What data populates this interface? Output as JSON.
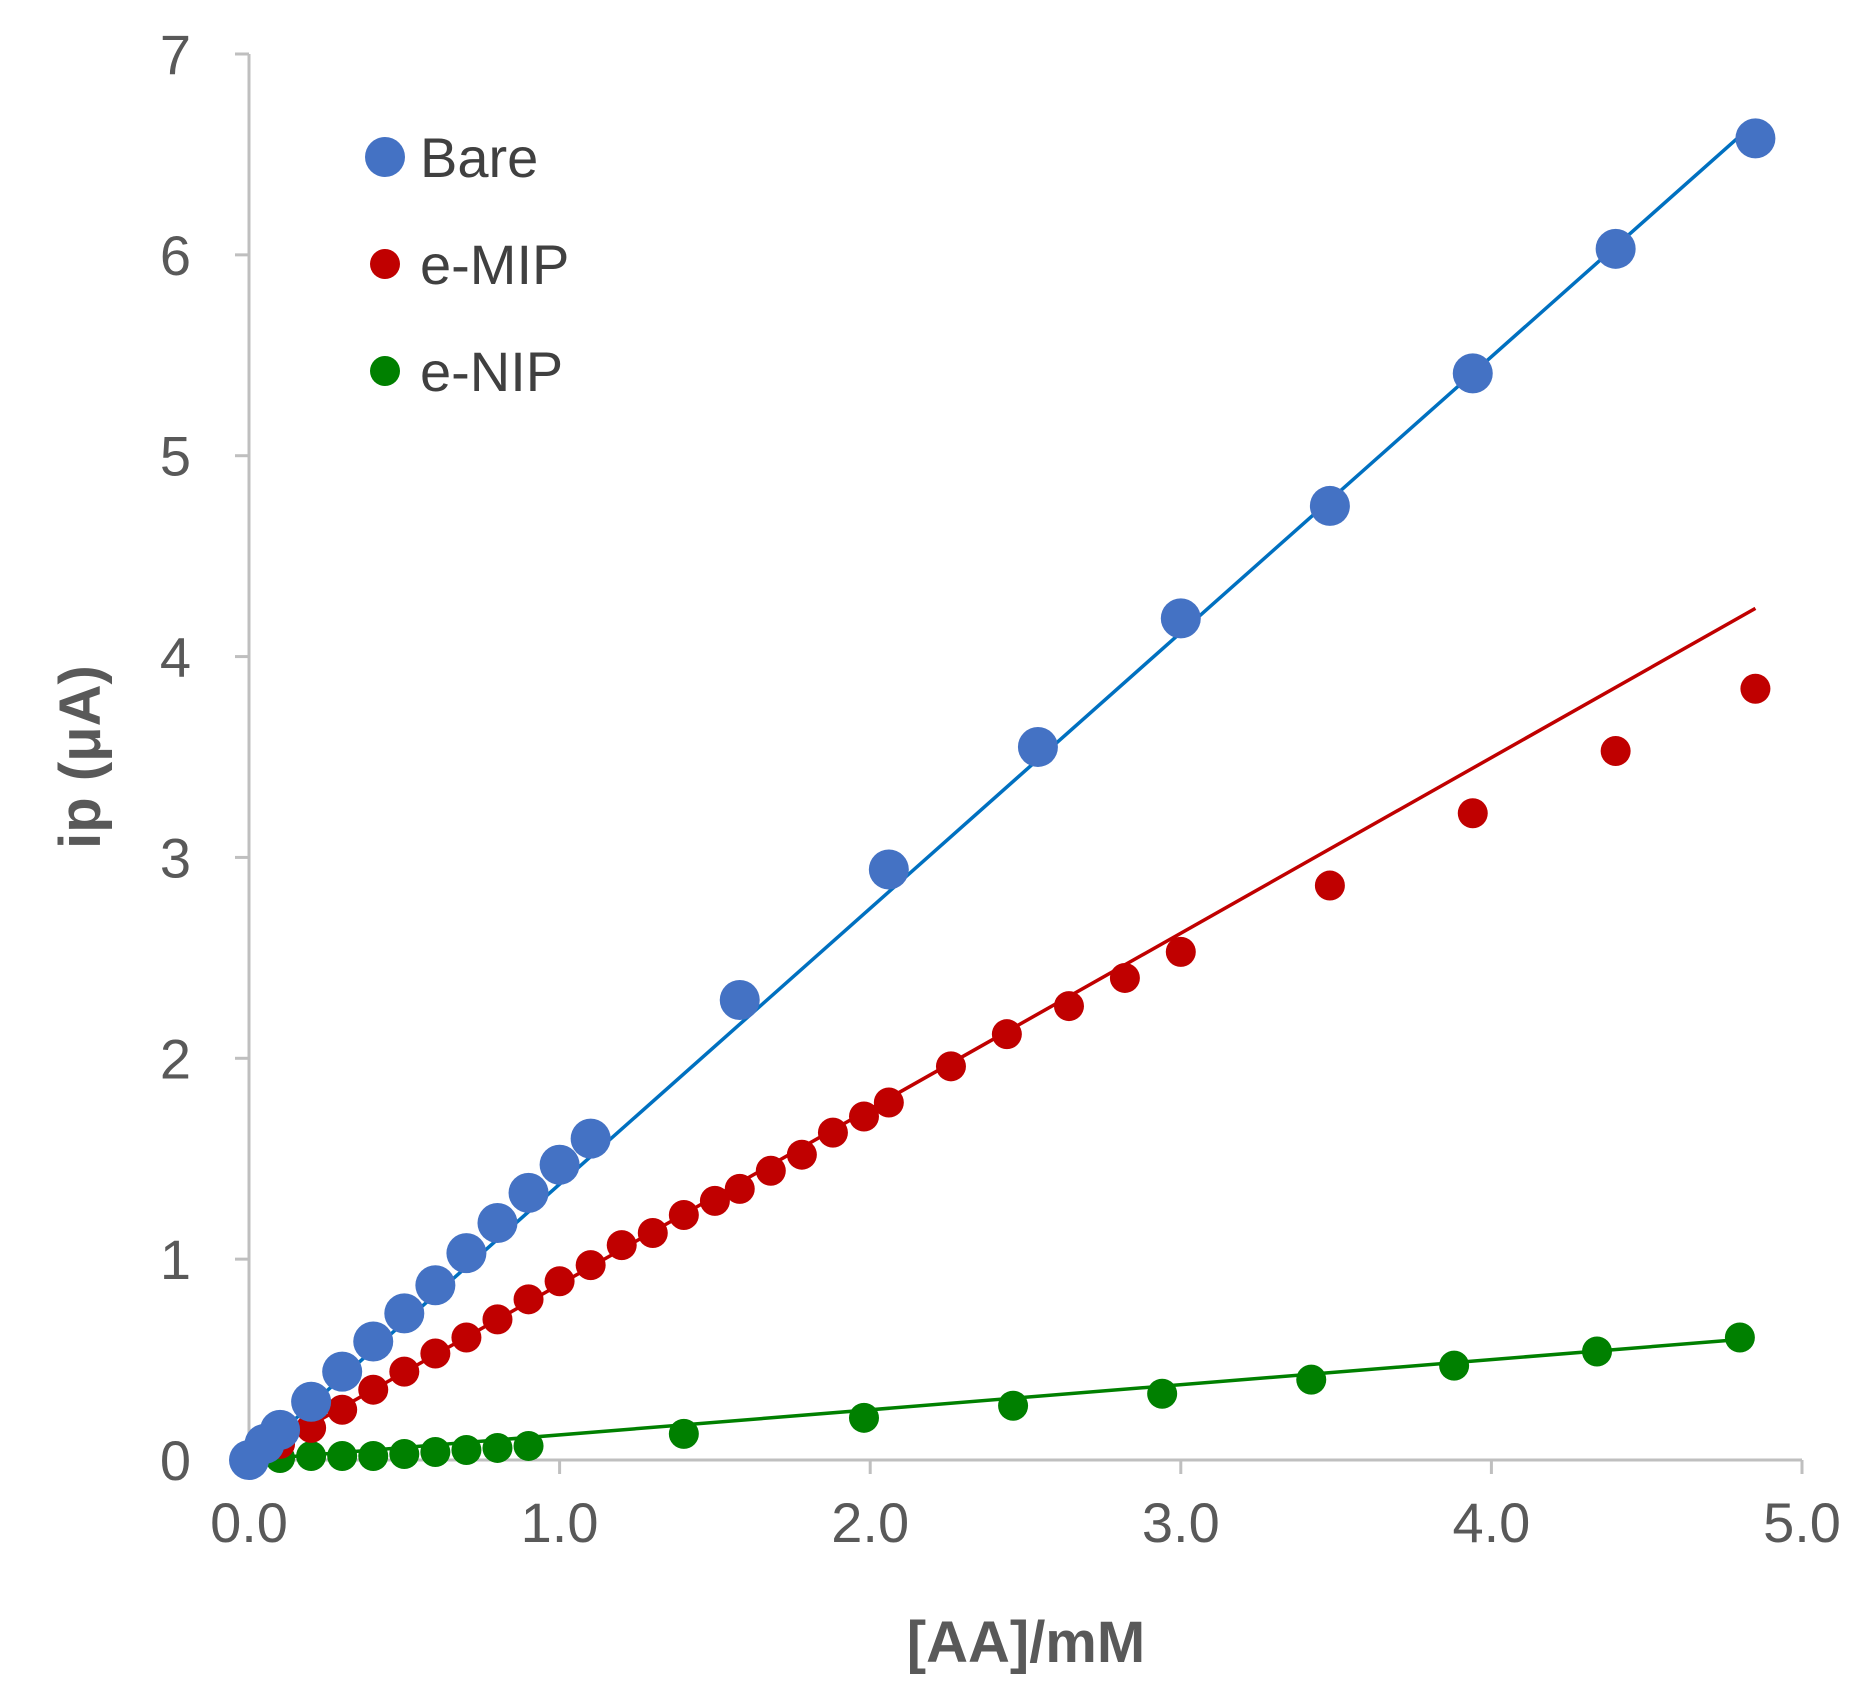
{
  "chart_data": {
    "type": "scatter",
    "title": "",
    "xlabel": "[AA]/mM",
    "ylabel": "ip (μA)",
    "xlim": [
      0,
      5
    ],
    "ylim": [
      0,
      7
    ],
    "x_ticks": [
      0,
      1,
      2,
      3,
      4,
      5
    ],
    "x_tick_labels": [
      "0.0",
      "1.0",
      "2.0",
      "3.0",
      "4.0",
      "5.0"
    ],
    "y_ticks": [
      0,
      1,
      2,
      3,
      4,
      5,
      6,
      7
    ],
    "y_tick_labels": [
      "0",
      "1",
      "2",
      "3",
      "4",
      "5",
      "6",
      "7"
    ],
    "grid": false,
    "legend_position": "top-left",
    "series": [
      {
        "name": "Bare",
        "color": "#4472C4",
        "line_color": "#0070C0",
        "marker_size": "large",
        "x": [
          0.0,
          0.05,
          0.1,
          0.2,
          0.3,
          0.4,
          0.5,
          0.6,
          0.7,
          0.8,
          0.9,
          1.0,
          1.1,
          1.58,
          2.06,
          2.54,
          3.0,
          3.48,
          3.94,
          4.4,
          4.85
        ],
        "y": [
          0.0,
          0.08,
          0.15,
          0.29,
          0.44,
          0.59,
          0.73,
          0.87,
          1.03,
          1.18,
          1.33,
          1.47,
          1.6,
          2.29,
          2.94,
          3.55,
          4.19,
          4.75,
          5.41,
          6.03,
          6.58
        ],
        "fit": {
          "x": [
            0.0,
            4.85
          ],
          "y": [
            0.0,
            6.66
          ]
        }
      },
      {
        "name": "e-MIP",
        "color": "#C00000",
        "line_color": "#C00000",
        "marker_size": "small",
        "x": [
          0.0,
          0.1,
          0.2,
          0.3,
          0.4,
          0.5,
          0.6,
          0.7,
          0.8,
          0.9,
          1.0,
          1.1,
          1.2,
          1.3,
          1.4,
          1.5,
          1.58,
          1.68,
          1.78,
          1.88,
          1.98,
          2.06,
          2.26,
          2.44,
          2.64,
          2.82,
          3.0,
          3.48,
          3.94,
          4.4,
          4.85
        ],
        "y": [
          0.0,
          0.08,
          0.16,
          0.25,
          0.35,
          0.44,
          0.53,
          0.61,
          0.7,
          0.8,
          0.89,
          0.97,
          1.07,
          1.13,
          1.22,
          1.29,
          1.35,
          1.44,
          1.52,
          1.63,
          1.71,
          1.78,
          1.96,
          2.12,
          2.26,
          2.4,
          2.53,
          2.86,
          3.22,
          3.53,
          3.84
        ],
        "fit": {
          "x": [
            0.0,
            4.85
          ],
          "y": [
            0.0,
            4.24
          ]
        }
      },
      {
        "name": "e-NIP",
        "color": "#008000",
        "line_color": "#008000",
        "marker_size": "small",
        "x": [
          0.0,
          0.1,
          0.2,
          0.3,
          0.4,
          0.5,
          0.6,
          0.7,
          0.8,
          0.9,
          1.4,
          1.98,
          2.46,
          2.94,
          3.42,
          3.88,
          4.34,
          4.8
        ],
        "y": [
          0.0,
          0.01,
          0.02,
          0.02,
          0.02,
          0.03,
          0.04,
          0.05,
          0.06,
          0.07,
          0.13,
          0.21,
          0.27,
          0.33,
          0.4,
          0.47,
          0.54,
          0.61
        ],
        "fit": {
          "x": [
            0.0,
            4.8
          ],
          "y": [
            0.0,
            0.6
          ]
        }
      }
    ]
  }
}
